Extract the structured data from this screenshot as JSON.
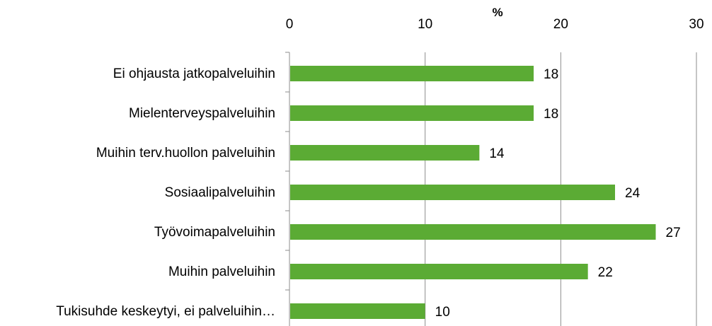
{
  "chart_data": {
    "type": "bar",
    "orientation": "horizontal",
    "axis_position": "top",
    "unit_label": "%",
    "categories": [
      "Ei ohjausta jatkopalveluihin",
      "Mielenterveyspalveluihin",
      "Muihin terv.huollon palveluihin",
      "Sosiaalipalveluihin",
      "Työvoimapalveluihin",
      "Muihin palveluihin",
      "Tukisuhde keskeytyi, ei palveluihin…"
    ],
    "values": [
      18,
      18,
      14,
      24,
      27,
      22,
      10
    ],
    "xlim": [
      0,
      30
    ],
    "ticks": [
      0,
      10,
      20,
      30
    ],
    "grid": true,
    "legend": "none",
    "bar_color": "#5bab34",
    "grid_color": "#8c8c8c"
  }
}
